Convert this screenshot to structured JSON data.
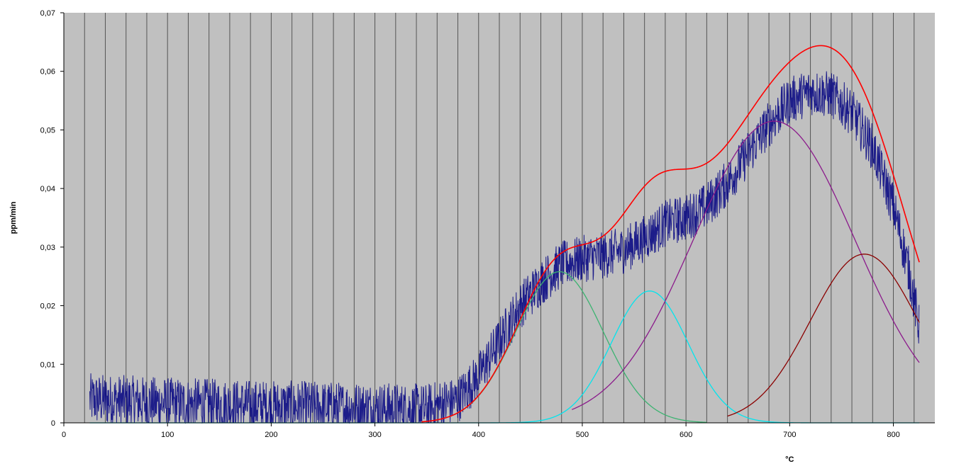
{
  "chart_data": {
    "type": "line",
    "title": "",
    "xlabel": "°C",
    "ylabel": "ppm/min",
    "xlim": [
      0,
      840
    ],
    "ylim": [
      0,
      0.07
    ],
    "x_ticks": [
      0,
      100,
      200,
      300,
      400,
      500,
      600,
      700,
      800
    ],
    "x_tick_labels": [
      "0",
      "100",
      "200",
      "300",
      "400",
      "500",
      "600",
      "700",
      "800"
    ],
    "y_ticks": [
      0,
      0.01,
      0.02,
      0.03,
      0.04,
      0.05,
      0.06,
      0.07
    ],
    "y_tick_labels": [
      "0",
      "0,01",
      "0,02",
      "0,03",
      "0,04",
      "0,05",
      "0,06",
      "0,07"
    ],
    "grid": "vertical lines every 20 °C",
    "legend": "none",
    "background_color": "#c0c0c0",
    "measured_series": {
      "color": "#000080",
      "x_range": [
        25,
        825
      ],
      "noise_amplitude": 0.0045,
      "envelope": [
        [
          25,
          0.004
        ],
        [
          100,
          0.0033
        ],
        [
          200,
          0.0028
        ],
        [
          300,
          0.0025
        ],
        [
          350,
          0.0022
        ],
        [
          380,
          0.004
        ],
        [
          400,
          0.008
        ],
        [
          420,
          0.014
        ],
        [
          440,
          0.02
        ],
        [
          460,
          0.024
        ],
        [
          480,
          0.027
        ],
        [
          500,
          0.028
        ],
        [
          520,
          0.0285
        ],
        [
          540,
          0.0295
        ],
        [
          560,
          0.0315
        ],
        [
          580,
          0.034
        ],
        [
          600,
          0.035
        ],
        [
          620,
          0.037
        ],
        [
          640,
          0.041
        ],
        [
          660,
          0.046
        ],
        [
          680,
          0.051
        ],
        [
          700,
          0.055
        ],
        [
          720,
          0.0565
        ],
        [
          740,
          0.056
        ],
        [
          760,
          0.053
        ],
        [
          780,
          0.047
        ],
        [
          800,
          0.037
        ],
        [
          815,
          0.026
        ],
        [
          825,
          0.016
        ]
      ]
    },
    "series": [
      {
        "color": "#3cb371",
        "shape": "gaussian",
        "center": 478,
        "sigma": 42,
        "peak": 0.0258,
        "x_range": [
          345,
          620
        ]
      },
      {
        "color": "#00e5ee",
        "shape": "gaussian",
        "center": 565,
        "sigma": 37,
        "peak": 0.0225,
        "x_range": [
          25,
          825
        ]
      },
      {
        "color": "#8b1a8b",
        "shape": "gaussian",
        "center": 685,
        "sigma": 78,
        "peak": 0.0515,
        "x_range": [
          490,
          825
        ]
      },
      {
        "color": "#8b0000",
        "shape": "gaussian",
        "center": 772,
        "sigma": 52,
        "peak": 0.0288,
        "x_range": [
          640,
          825
        ]
      },
      {
        "color": "#ff0000",
        "shape": "sum",
        "x_range": [
          345,
          825
        ]
      }
    ]
  }
}
